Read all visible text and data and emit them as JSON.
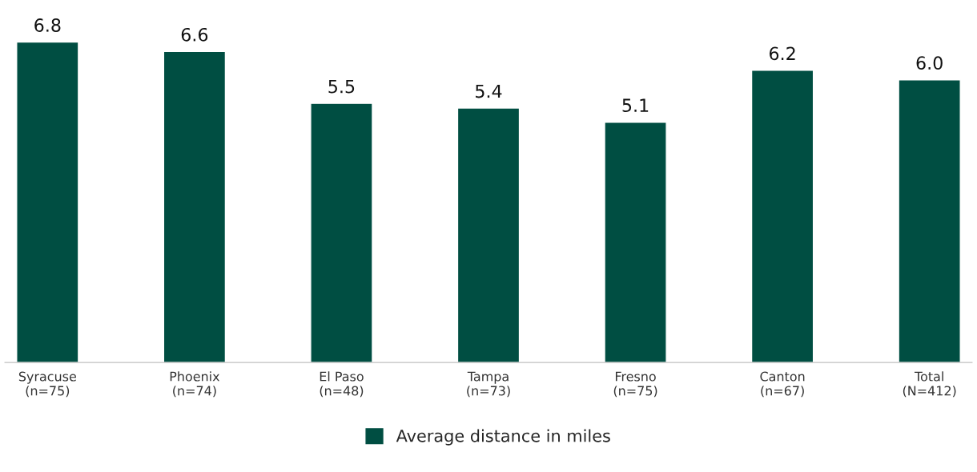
{
  "chart_data": {
    "type": "bar",
    "categories": [
      "Syracuse\n(n=75)",
      "Phoenix\n(n=74)",
      "El Paso\n(n=48)",
      "Tampa\n(n=73)",
      "Fresno\n(n=75)",
      "Canton\n(n=67)",
      "Total\n(N=412)"
    ],
    "series": [
      {
        "name": "Average distance in miles",
        "color": "#004e42",
        "values": [
          6.8,
          6.6,
          5.5,
          5.4,
          5.1,
          6.2,
          6.0
        ],
        "value_labels": [
          "6.8",
          "6.6",
          "5.5",
          "5.4",
          "5.1",
          "6.2",
          "6.0"
        ]
      }
    ],
    "legend": "bottom",
    "grid": false
  }
}
